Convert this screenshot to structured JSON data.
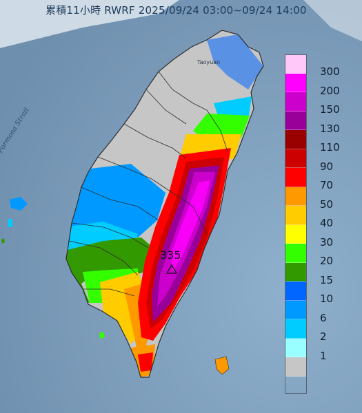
{
  "title": "累積11小時 RWRF 2025/09/24 03:00~09/24 14:00",
  "sea_label": "Formosa Strait",
  "place_label": "Taoyuan",
  "peak_value": "335",
  "peak_marker_icon": "triangle-marker-icon",
  "legend": [
    {
      "label": "300",
      "color": "#ffc8f8"
    },
    {
      "label": "200",
      "color": "#ff00ff"
    },
    {
      "label": "150",
      "color": "#cc00cc"
    },
    {
      "label": "130",
      "color": "#990099"
    },
    {
      "label": "110",
      "color": "#990000"
    },
    {
      "label": "90",
      "color": "#cc0000"
    },
    {
      "label": "70",
      "color": "#ff0000"
    },
    {
      "label": "50",
      "color": "#ff9900"
    },
    {
      "label": "40",
      "color": "#ffcc00"
    },
    {
      "label": "30",
      "color": "#ffff00"
    },
    {
      "label": "20",
      "color": "#33ff00"
    },
    {
      "label": "15",
      "color": "#339900"
    },
    {
      "label": "10",
      "color": "#0066ff"
    },
    {
      "label": "6",
      "color": "#0099ff"
    },
    {
      "label": "2",
      "color": "#00ccff"
    },
    {
      "label": "1",
      "color": "#99ffff"
    },
    {
      "label": "",
      "color": "#c6c6c6"
    }
  ],
  "legend_bottom_label": "1",
  "colors": {
    "sea": "#7b9ab8",
    "land_none": "#c6c6c6",
    "border_line": "#2d2d2d"
  }
}
